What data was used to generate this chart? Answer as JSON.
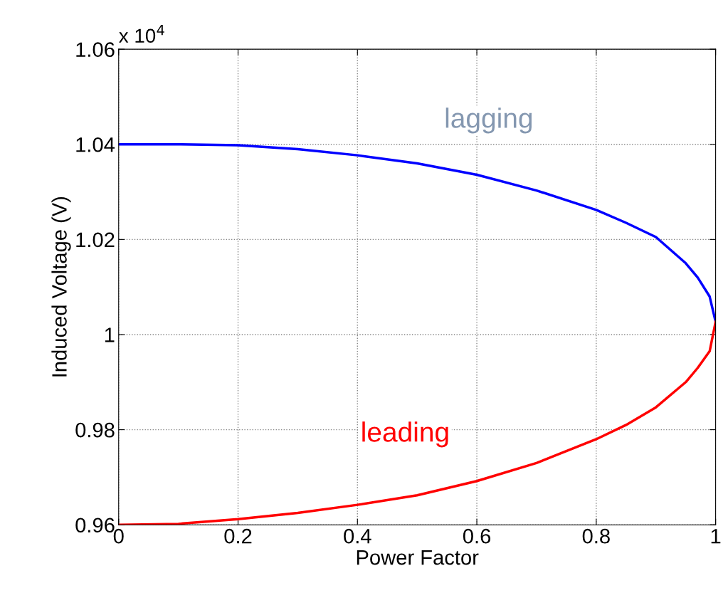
{
  "chart_data": {
    "type": "line",
    "xlabel": "Power Factor",
    "ylabel": "Induced Voltage (V)",
    "xlim": [
      0,
      1
    ],
    "xticks": [
      0,
      0.2,
      0.4,
      0.6,
      0.8,
      1
    ],
    "ylim": [
      0.96,
      1.06
    ],
    "yticks": [
      0.96,
      0.98,
      1,
      1.02,
      1.04,
      1.06
    ],
    "grid": true,
    "line_style": "solid",
    "marker": "none",
    "series": [
      {
        "color": "#0000ff",
        "x": [
          0,
          0.1,
          0.2,
          0.3,
          0.4,
          0.5,
          0.6,
          0.7,
          0.8,
          0.85,
          0.9,
          0.95,
          0.97,
          0.99,
          1.0
        ],
        "values": [
          1.04,
          1.04,
          1.0398,
          1.039,
          1.0377,
          1.036,
          1.0336,
          1.0303,
          1.0262,
          1.0235,
          1.0205,
          1.015,
          1.012,
          1.008,
          1.0027
        ]
      },
      {
        "color": "#ff0000",
        "x": [
          0,
          0.1,
          0.2,
          0.3,
          0.4,
          0.5,
          0.6,
          0.7,
          0.8,
          0.85,
          0.9,
          0.95,
          0.97,
          0.99,
          1.0
        ],
        "values": [
          0.96,
          0.9602,
          0.9612,
          0.9625,
          0.9642,
          0.9662,
          0.9692,
          0.973,
          0.978,
          0.981,
          0.9847,
          0.99,
          0.993,
          0.9965,
          1.0027
        ]
      }
    ],
    "annotations": [
      "lagging",
      "leading",
      "x 10$^{4}$"
    ]
  }
}
